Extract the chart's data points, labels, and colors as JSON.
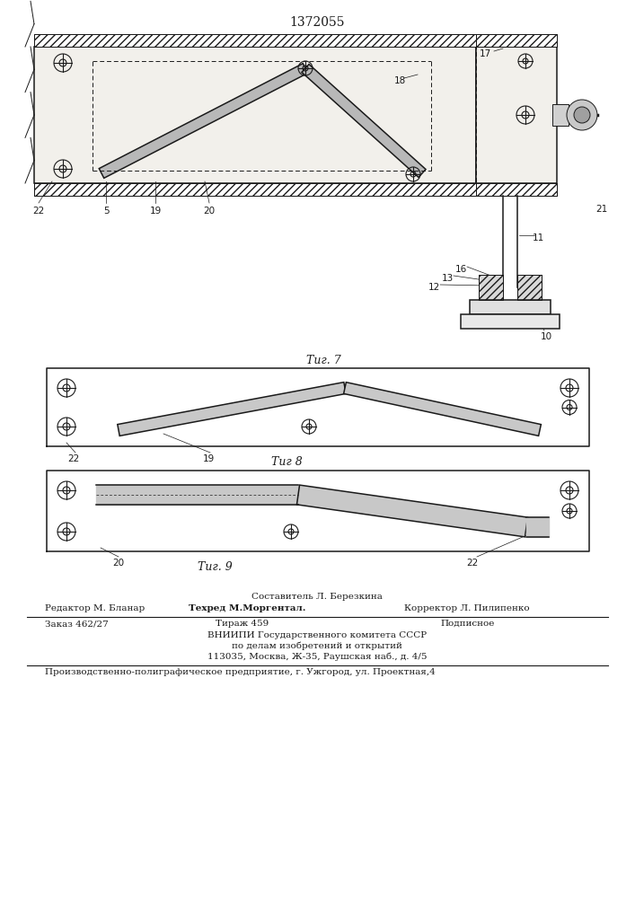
{
  "patent_number": "1372055",
  "fig7_label": "Τиг. 7",
  "fig8_label": "Τиг 8",
  "fig9_label": "Τиг. 9",
  "line_color": "#1a1a1a",
  "footer_lines": [
    "Составитель Л. Березкина",
    "Редактор М. Бланар",
    "Техред М.Моргентал.",
    "Корректор Л. Пилипенко",
    "Заказ 462/27",
    "Тираж 459",
    "Подписное",
    "ВНИИПИ Государственного комитета СССР",
    "по делам изобретений и открытий",
    "113035, Москва, Ж-35, Раушская наб., д. 4/5",
    "Производственно-полиграфическое предприятие, г. Ужгород, ул. Проектная,4"
  ]
}
